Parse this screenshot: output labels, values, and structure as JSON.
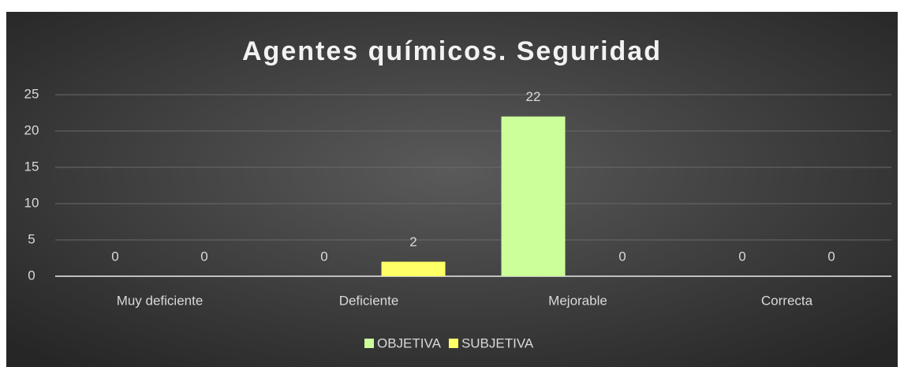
{
  "chart_data": {
    "type": "bar",
    "title": "Agentes químicos. Seguridad",
    "categories": [
      "Muy deficiente",
      "Deficiente",
      "Mejorable",
      "Correcta"
    ],
    "series": [
      {
        "name": "OBJETIVA",
        "color": "#ccff99",
        "values": [
          0,
          0,
          22,
          0
        ]
      },
      {
        "name": "SUBJETIVA",
        "color": "#ffff66",
        "values": [
          0,
          2,
          0,
          0
        ]
      }
    ],
    "ylim": [
      0,
      25
    ],
    "yticks": [
      0,
      5,
      10,
      15,
      20,
      25
    ],
    "grid": true,
    "legend": "bottom"
  }
}
